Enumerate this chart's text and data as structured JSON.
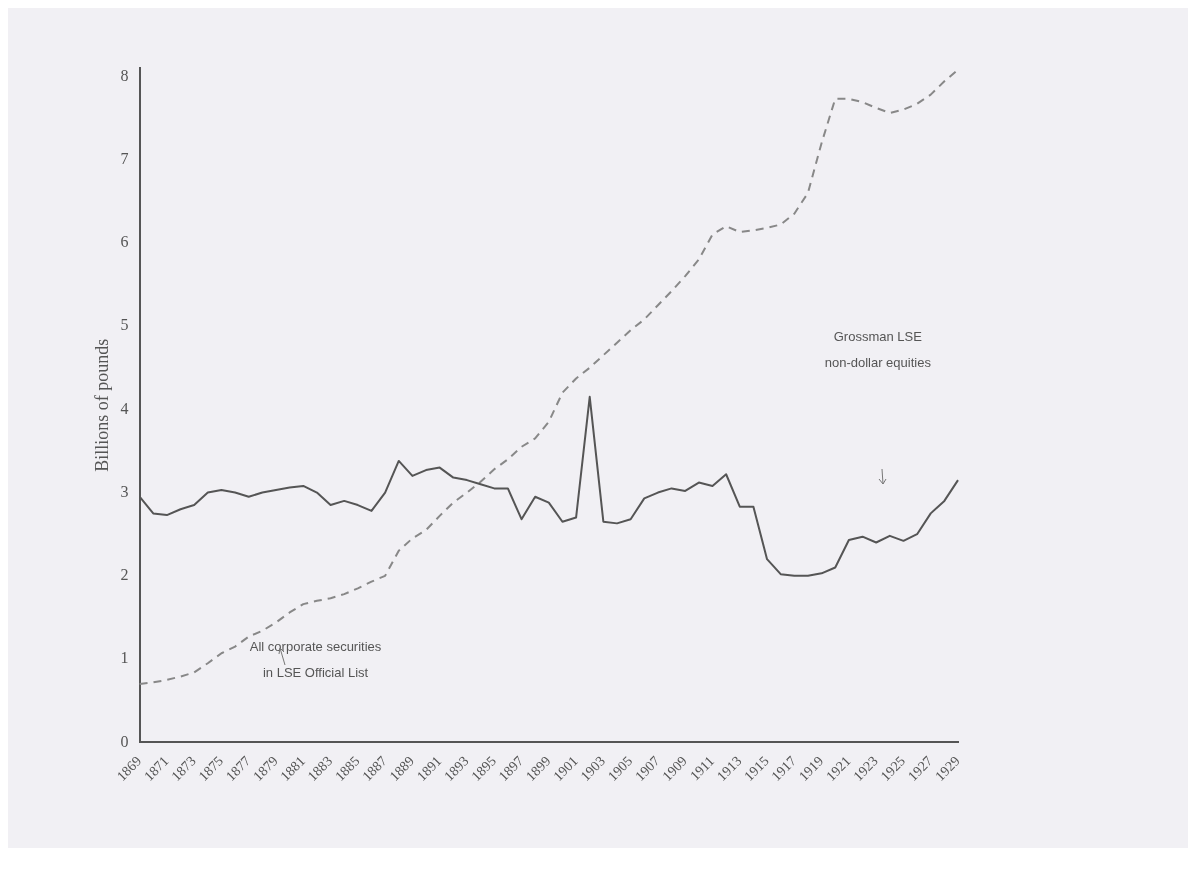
{
  "chart_data": {
    "type": "line",
    "ylabel": "Billions of pounds",
    "categories": [
      "1869",
      null,
      "1871",
      null,
      "1873",
      null,
      "1875",
      null,
      "1877",
      null,
      "1879",
      null,
      "1881",
      null,
      "1883",
      null,
      "1885",
      null,
      "1887",
      null,
      "1889",
      null,
      "1891",
      null,
      "1893",
      null,
      "1895",
      null,
      "1897",
      null,
      "1899",
      null,
      "1901",
      null,
      "1903",
      null,
      "1905",
      null,
      "1907",
      null,
      "1909",
      null,
      "1911",
      null,
      "1913",
      null,
      "1915",
      null,
      "1917",
      null,
      "1919",
      null,
      "1921",
      null,
      "1923",
      null,
      "1925",
      null,
      "1927",
      null,
      "1929"
    ],
    "series": [
      {
        "color": "#555555",
        "line_style": "solid",
        "values": [
          2.95,
          2.75,
          2.73,
          2.8,
          2.85,
          3.0,
          3.03,
          3.0,
          2.95,
          3.0,
          3.03,
          3.06,
          3.08,
          3.0,
          2.85,
          2.9,
          2.85,
          2.78,
          3.0,
          3.38,
          3.2,
          3.27,
          3.3,
          3.18,
          3.15,
          3.1,
          3.05,
          3.05,
          2.68,
          2.95,
          2.88,
          2.65,
          2.7,
          4.15,
          2.65,
          2.63,
          2.68,
          2.93,
          3.0,
          3.05,
          3.02,
          3.12,
          3.08,
          3.22,
          2.83,
          2.83,
          2.2,
          2.02,
          2.0,
          2.0,
          2.03,
          2.1,
          2.43,
          2.47,
          2.4,
          2.48,
          2.42,
          2.5,
          2.75,
          2.9,
          3.15
        ]
      },
      {
        "color": "#888888",
        "line_style": "dashed",
        "values": [
          0.7,
          0.72,
          0.75,
          0.79,
          0.84,
          0.95,
          1.07,
          1.15,
          1.27,
          1.34,
          1.44,
          1.56,
          1.66,
          1.7,
          1.73,
          1.78,
          1.85,
          1.93,
          2.0,
          2.3,
          2.45,
          2.55,
          2.72,
          2.88,
          3.0,
          3.13,
          3.28,
          3.4,
          3.55,
          3.65,
          3.85,
          4.2,
          4.37,
          4.5,
          4.65,
          4.8,
          4.95,
          5.08,
          5.25,
          5.42,
          5.6,
          5.8,
          6.1,
          6.2,
          6.13,
          6.15,
          6.18,
          6.22,
          6.35,
          6.6,
          7.2,
          7.73,
          7.73,
          7.69,
          7.62,
          7.56,
          7.6,
          7.67,
          7.78,
          7.94,
          8.08
        ]
      }
    ],
    "ylim": [
      0,
      8.1
    ],
    "yticks": [
      0,
      1,
      2,
      3,
      4,
      5,
      6,
      7,
      8
    ],
    "grid": false,
    "legend": false,
    "marker": "none",
    "annotations": [
      "All corporate securities\nin LSE Official List",
      "Grossman LSE\nnon-dollar equities"
    ]
  }
}
